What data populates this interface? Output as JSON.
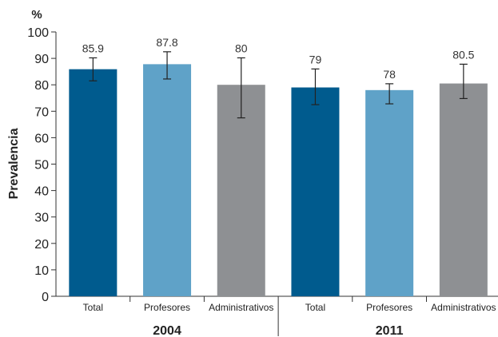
{
  "chart_data": {
    "type": "bar",
    "unit": "%",
    "ylabel": "Prevalencia",
    "ylim": [
      0,
      100
    ],
    "yticks": [
      0,
      10,
      20,
      30,
      40,
      50,
      60,
      70,
      80,
      90,
      100
    ],
    "grid": false,
    "groups": [
      {
        "label": "2004",
        "bars": [
          {
            "category": "Total",
            "value": 85.9,
            "value_label": "85.9",
            "ci": [
              81.5,
              90.2
            ],
            "color": "#005b8e"
          },
          {
            "category": "Profesores",
            "value": 87.8,
            "value_label": "87.8",
            "ci": [
              82.2,
              92.5
            ],
            "color": "#5fa2c8"
          },
          {
            "category": "Administrativos",
            "value": 80,
            "value_label": "80",
            "ci": [
              67.5,
              90.2
            ],
            "color": "#8e9093"
          }
        ]
      },
      {
        "label": "2011",
        "bars": [
          {
            "category": "Total",
            "value": 79,
            "value_label": "79",
            "ci": [
              72.5,
              86
            ],
            "color": "#005b8e"
          },
          {
            "category": "Profesores",
            "value": 78,
            "value_label": "78",
            "ci": [
              72.8,
              80.4
            ],
            "color": "#5fa2c8"
          },
          {
            "category": "Administrativos",
            "value": 80.5,
            "value_label": "80.5",
            "ci": [
              74.8,
              87.8
            ],
            "color": "#8e9093"
          }
        ]
      }
    ]
  }
}
